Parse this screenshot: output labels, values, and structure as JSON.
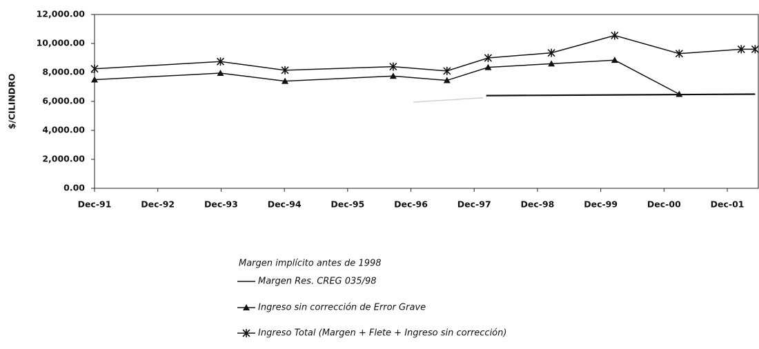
{
  "chart_data": {
    "type": "line",
    "y_label": "$/CILINDRO",
    "xlim": [
      1991.96,
      2002.45
    ],
    "xticks": [
      {
        "value": 1991.96,
        "label": "Dec-91"
      },
      {
        "value": 1992.96,
        "label": "Dec-92"
      },
      {
        "value": 1993.96,
        "label": "Dec-93"
      },
      {
        "value": 1994.96,
        "label": "Dec-94"
      },
      {
        "value": 1995.96,
        "label": "Dec-95"
      },
      {
        "value": 1996.96,
        "label": "Dec-96"
      },
      {
        "value": 1997.96,
        "label": "Dec-97"
      },
      {
        "value": 1998.96,
        "label": "Dec-98"
      },
      {
        "value": 1999.96,
        "label": "Dec-99"
      },
      {
        "value": 2000.96,
        "label": "Dec-00"
      },
      {
        "value": 2001.96,
        "label": "Dec-01"
      }
    ],
    "ylim": [
      0,
      12000
    ],
    "yticks": [
      {
        "value": 0,
        "label": "0.00"
      },
      {
        "value": 2000,
        "label": "2,000.00"
      },
      {
        "value": 4000,
        "label": "4,000.00"
      },
      {
        "value": 6000,
        "label": "6,000.00"
      },
      {
        "value": 8000,
        "label": "8,000.00"
      },
      {
        "value": 10000,
        "label": "10,000.00"
      },
      {
        "value": 12000,
        "label": "12,000.00"
      }
    ],
    "grid": false,
    "legend": "bottom",
    "series": [
      {
        "name": "Margen implícito antes de 1998",
        "color": "#d0d0d0",
        "marker": "none",
        "x": [
          1997.0,
          1998.1
        ],
        "values": [
          5950,
          6250
        ]
      },
      {
        "name": "Margen  Res. CREG 035/98",
        "color": "#111111",
        "marker": "none",
        "x": [
          1998.15,
          2002.4
        ],
        "values": [
          6400,
          6500
        ]
      },
      {
        "name": "Ingreso sin corrección de Error Grave",
        "color": "#111111",
        "marker": "triangle",
        "x": [
          1991.96,
          1993.95,
          1994.97,
          1996.68,
          1997.53,
          1998.18,
          1999.18,
          2000.18,
          2001.2
        ],
        "values": [
          7500,
          7950,
          7400,
          7750,
          7450,
          8350,
          8600,
          8850,
          6500
        ]
      },
      {
        "name": "Ingreso Total (Margen + Flete + Ingreso sin corrección)",
        "color": "#111111",
        "marker": "star",
        "x": [
          1991.96,
          1993.95,
          1994.97,
          1996.68,
          1997.53,
          1998.18,
          1999.18,
          2000.18,
          2001.2,
          2002.18,
          2002.4
        ],
        "values": [
          8250,
          8750,
          8150,
          8400,
          8100,
          9000,
          9350,
          10550,
          9300,
          9600,
          9600
        ]
      }
    ]
  }
}
